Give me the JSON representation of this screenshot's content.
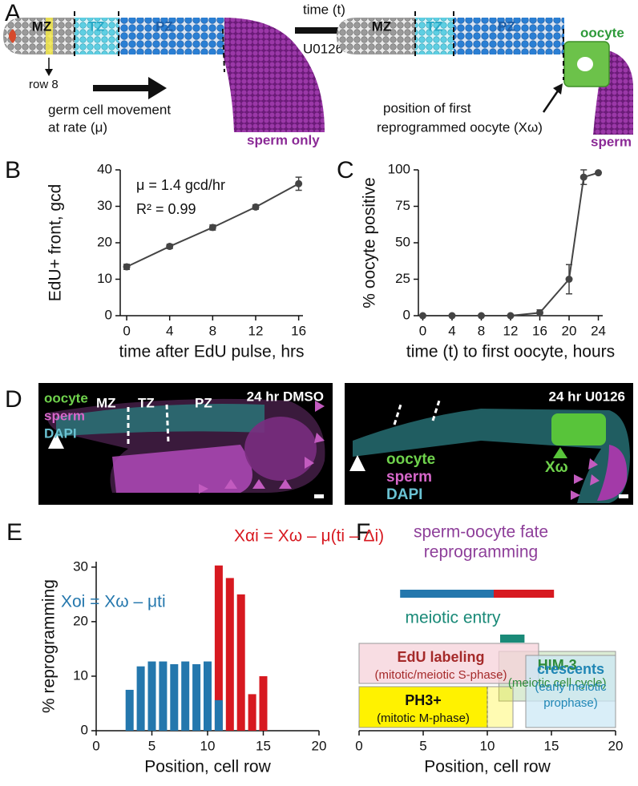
{
  "panel_labels": [
    "A",
    "B",
    "C",
    "D",
    "E",
    "F"
  ],
  "panel_a": {
    "left": {
      "zones": [
        "MZ",
        "TZ",
        "PZ"
      ],
      "row_label": "row 8",
      "movement": [
        "germ cell movement",
        "at rate (μ)"
      ],
      "end_label": "sperm only"
    },
    "treatment": [
      "time (t)",
      "U0126"
    ],
    "right": {
      "zones": [
        "MZ",
        "TZ",
        "PZ"
      ],
      "oocyte_label": "oocyte",
      "position": [
        "position of first",
        "reprogrammed oocyte (Xω)"
      ],
      "end_label": "sperm"
    }
  },
  "panel_d": {
    "left": {
      "title": "24 hr DMSO",
      "stains": [
        "oocyte",
        "sperm",
        "DAPI"
      ],
      "zones": [
        "MZ",
        "TZ",
        "PZ"
      ]
    },
    "right": {
      "title": "24 hr U0126",
      "stains": [
        "oocyte",
        "sperm",
        "DAPI"
      ],
      "marker": "Xω"
    }
  },
  "chart_data": [
    {
      "type": "line",
      "x": [
        0,
        4,
        8,
        12,
        16
      ],
      "values": [
        13.4,
        19,
        24.2,
        29.8,
        36.2
      ],
      "errors": [
        0.7,
        0.6,
        0.7,
        0.6,
        1.8
      ],
      "color": "#444444",
      "xlim": [
        -0.6,
        16.4
      ],
      "xticks": [
        0,
        4,
        8,
        12,
        16
      ],
      "ylim": [
        0,
        40
      ],
      "yticks": [
        0,
        10,
        20,
        30,
        40
      ],
      "xlabel": "time after EdU pulse, hrs",
      "ylabel": "EdU+  front, gcd",
      "annotations": [
        "μ = 1.4 gcd/hr",
        "R² = 0.99"
      ]
    },
    {
      "type": "line",
      "x": [
        0,
        4,
        8,
        12,
        16,
        20,
        22,
        24
      ],
      "values": [
        0,
        0,
        0,
        0,
        2,
        25,
        95,
        98
      ],
      "errors": [
        0,
        0,
        0,
        0,
        2,
        10,
        5,
        0
      ],
      "color": "#444444",
      "xlim": [
        -0.6,
        24.6
      ],
      "xticks": [
        0,
        4,
        8,
        12,
        16,
        20,
        24
      ],
      "ylim": [
        0,
        100
      ],
      "yticks": [
        0,
        25,
        50,
        75,
        100
      ],
      "xlabel": "time (t) to first oocyte, hours",
      "ylabel": "% oocyte positive"
    },
    {
      "type": "bar",
      "x": [
        3,
        4,
        5,
        6,
        7,
        8,
        9,
        10,
        11,
        12,
        13,
        14,
        15
      ],
      "series": [
        {
          "name": "Xαi = Xω – μ(ti – Δi)",
          "color": "#d71920",
          "values": [
            null,
            null,
            null,
            null,
            null,
            null,
            null,
            null,
            30.3,
            28,
            25,
            6.7,
            10
          ]
        },
        {
          "name": "Xοi = Xω – μti",
          "color": "#2477ad",
          "values": [
            7.5,
            11.8,
            12.7,
            12.7,
            12.2,
            12.7,
            12.2,
            12.7,
            5.6,
            null,
            null,
            null,
            null
          ]
        }
      ],
      "xlim": [
        0,
        20
      ],
      "xticks": [
        0,
        5,
        10,
        15,
        20
      ],
      "ylim": [
        0,
        31
      ],
      "yticks": [
        0,
        10,
        20,
        30
      ],
      "xlabel": "Position, cell row",
      "ylabel": "%  reprogramming"
    },
    {
      "type": "range",
      "xlim": [
        0,
        20
      ],
      "xticks": [
        0,
        5,
        10,
        15,
        20
      ],
      "xlabel": "Position, cell row",
      "bars": [
        {
          "label": [
            "sperm-oocyte fate",
            "reprogramming"
          ],
          "color": "#8e3f9a",
          "segments": [
            {
              "start": 3.2,
              "end": 10.5,
              "color": "#2477ad"
            },
            {
              "start": 10.5,
              "end": 15.2,
              "color": "#d71920"
            }
          ]
        },
        {
          "label": [
            "meiotic entry"
          ],
          "color": "#1a8a78",
          "segments": [
            {
              "start": 11,
              "end": 12.9,
              "color": "#1a8a78"
            }
          ]
        }
      ],
      "boxes": [
        {
          "label": "HIM-3",
          "sublabel": [
            "(meiotic cell cycle)"
          ],
          "start": 10.9,
          "end": 20,
          "color": "#2e8b3a",
          "fill": "#cfe6c6"
        },
        {
          "label": "EdU labeling",
          "sublabel": [
            "(mitotic/meiotic S-phase)"
          ],
          "start": 0,
          "end": 14,
          "color": "#a52a2a",
          "fill": "#f6d2d9"
        },
        {
          "label": "crescents",
          "sublabel": [
            "(early meiotic",
            "prophase)"
          ],
          "start": 13,
          "end": 20,
          "color": "#1f86b5",
          "fill": "#cce8f6"
        },
        {
          "label": "PH3+",
          "sublabel": [
            "(mitotic M-phase)"
          ],
          "start": 0,
          "end": 12,
          "solid_end": 10,
          "color": "#111111",
          "fill": "#fff200"
        }
      ]
    }
  ]
}
